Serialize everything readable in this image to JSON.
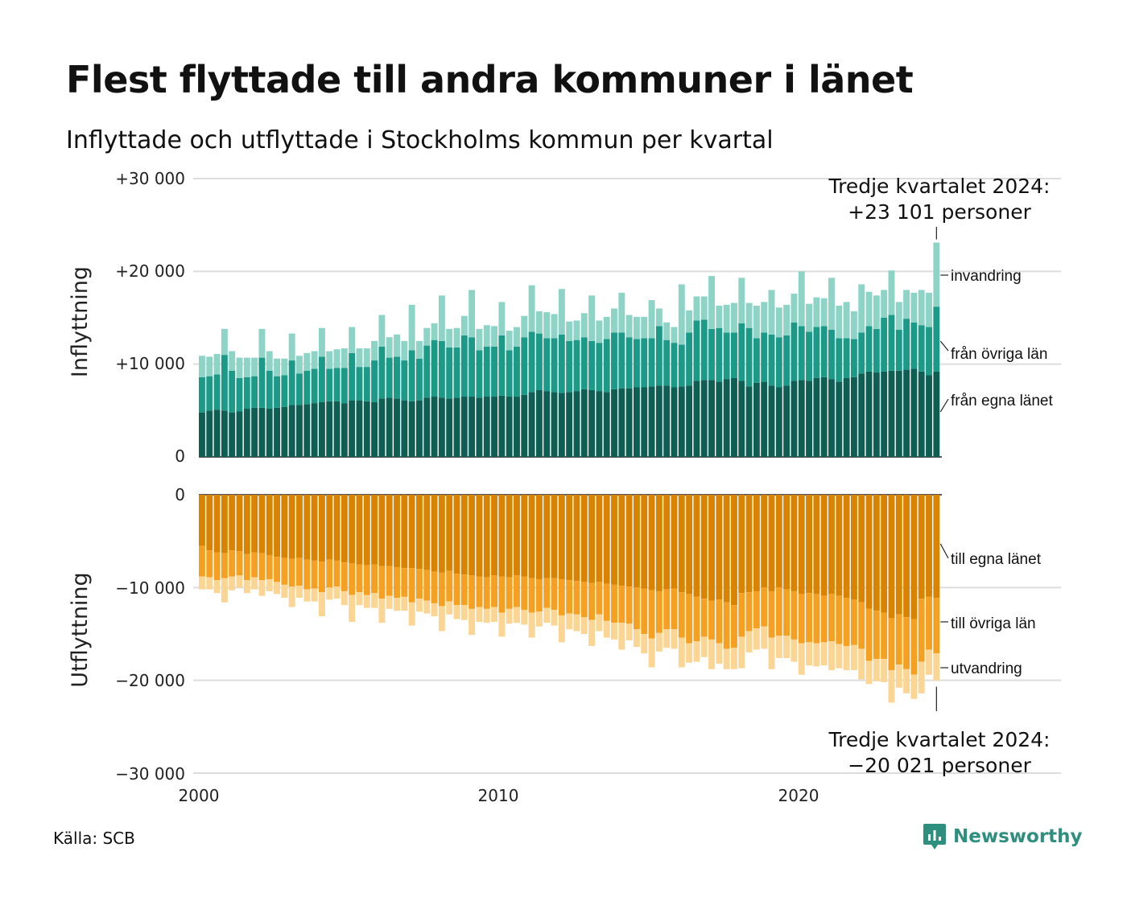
{
  "title": "Flest flyttade till andra kommuner i länet",
  "subtitle": "Inflyttade och utflyttade i Stockholms kommun per kvartal",
  "source": "Källa: SCB",
  "brand": "Newsworthy",
  "colors": {
    "inflow_own": "#0f5e54",
    "inflow_other": "#1b9a88",
    "inflow_immigration": "#8dd4c7",
    "outflow_own": "#d98300",
    "outflow_other": "#f6a021",
    "outflow_emigration": "#fbd593",
    "grid": "#dddddd",
    "brand": "#2f8f7f"
  },
  "chart_data": {
    "type": "bar",
    "stacked": true,
    "layout": "mirrored-panels",
    "x_start": "2000 Q1",
    "x_end": "2024 Q3",
    "x_ticks": [
      "2000",
      "2010",
      "2020"
    ],
    "top_panel": {
      "ylabel": "Inflyttning",
      "ylim": [
        0,
        30000
      ],
      "yticks": [
        "0",
        "+10 000",
        "+20 000",
        "+30 000"
      ],
      "series_labels": [
        "från egna länet",
        "från övriga län",
        "invandring"
      ],
      "annotation": [
        "Tredje kvartalet 2024:",
        "+23 101 personer"
      ]
    },
    "bottom_panel": {
      "ylabel": "Utflyttning",
      "ylim": [
        -30000,
        0
      ],
      "yticks": [
        "0",
        "−10 000",
        "−20 000",
        "−30 000"
      ],
      "series_labels": [
        "till egna länet",
        "till övriga län",
        "utvandring"
      ],
      "annotation": [
        "Tredje kvartalet 2024:",
        "−20 021 personer"
      ]
    },
    "in_own": [
      4800,
      5000,
      5100,
      5000,
      4800,
      4900,
      5200,
      5300,
      5300,
      5200,
      5300,
      5400,
      5600,
      5600,
      5700,
      5800,
      5900,
      6000,
      6000,
      5800,
      6100,
      6100,
      6000,
      5900,
      6300,
      6400,
      6300,
      6100,
      6000,
      6100,
      6400,
      6500,
      6400,
      6300,
      6400,
      6500,
      6500,
      6400,
      6500,
      6500,
      6600,
      6500,
      6500,
      6700,
      7000,
      7200,
      7100,
      7000,
      6900,
      7000,
      7100,
      7300,
      7200,
      7100,
      7000,
      7300,
      7400,
      7400,
      7500,
      7500,
      7600,
      7700,
      7700,
      7500,
      7600,
      7700,
      8200,
      8300,
      8300,
      8100,
      8400,
      8500,
      8200,
      7600,
      8000,
      8100,
      7700,
      7500,
      7700,
      8200,
      8300,
      8200,
      8500,
      8600,
      8400,
      8100,
      8500,
      8600,
      9000,
      9200,
      9100,
      9200,
      9300,
      9300,
      9400,
      9500,
      9200,
      8800,
      9200
    ],
    "in_other": [
      3800,
      3700,
      3800,
      6000,
      4500,
      3600,
      3400,
      3400,
      5400,
      4100,
      3400,
      3400,
      4800,
      3400,
      3600,
      3700,
      4900,
      3500,
      3600,
      3800,
      5100,
      3600,
      3700,
      4500,
      5600,
      4300,
      4500,
      4300,
      5500,
      4500,
      5600,
      6100,
      6100,
      5500,
      5400,
      6600,
      6400,
      5100,
      5400,
      5400,
      6500,
      5000,
      5400,
      6200,
      6500,
      6100,
      5700,
      5800,
      6300,
      5500,
      5500,
      5600,
      5300,
      5200,
      5700,
      6100,
      6000,
      5500,
      5200,
      5300,
      5200,
      6400,
      4900,
      4800,
      4500,
      5700,
      6500,
      6500,
      5500,
      5800,
      5000,
      4900,
      6200,
      6300,
      4800,
      5300,
      5500,
      5400,
      5400,
      6300,
      5800,
      5300,
      5500,
      5500,
      5300,
      4700,
      4300,
      4100,
      4400,
      4900,
      4700,
      5800,
      6000,
      4400,
      5500,
      5000,
      5000,
      5200,
      7000
    ],
    "in_imm": [
      2300,
      2100,
      2200,
      2800,
      2100,
      2200,
      2100,
      2000,
      3100,
      2100,
      1900,
      1800,
      2900,
      1900,
      1900,
      1900,
      3100,
      1900,
      2000,
      2100,
      2800,
      2000,
      2000,
      2100,
      3400,
      2200,
      2400,
      2100,
      4900,
      1900,
      1900,
      1800,
      4900,
      2000,
      2100,
      2100,
      5100,
      2300,
      2300,
      2200,
      3600,
      2100,
      2100,
      2300,
      5000,
      2400,
      2800,
      2600,
      4900,
      2100,
      2100,
      2600,
      4900,
      2400,
      2400,
      2600,
      4300,
      2400,
      2400,
      2300,
      4100,
      1900,
      1900,
      1700,
      6500,
      2400,
      2600,
      2500,
      5700,
      2400,
      3000,
      3200,
      4900,
      2700,
      3500,
      3300,
      4800,
      3200,
      3300,
      3100,
      5900,
      3000,
      3200,
      3000,
      5600,
      3500,
      3900,
      3000,
      5200,
      3700,
      3600,
      3000,
      4800,
      3000,
      3100,
      3200,
      3800,
      3700,
      6900
    ],
    "out_own": [
      5500,
      6000,
      6200,
      6300,
      6000,
      6100,
      6400,
      6200,
      6300,
      6500,
      6700,
      6800,
      6900,
      6800,
      7000,
      7100,
      7200,
      7000,
      7100,
      7300,
      7400,
      7500,
      7600,
      7500,
      7700,
      7700,
      7800,
      7900,
      7900,
      8000,
      8100,
      8300,
      8400,
      8200,
      8500,
      8600,
      8700,
      8800,
      8900,
      8700,
      8800,
      8900,
      8700,
      8800,
      9000,
      9100,
      9000,
      9000,
      9100,
      9200,
      9300,
      9400,
      9500,
      9400,
      9600,
      9700,
      9800,
      9900,
      10000,
      10100,
      10300,
      10400,
      10200,
      10100,
      10500,
      10700,
      11000,
      11200,
      11400,
      11300,
      11600,
      11900,
      10600,
      10500,
      10400,
      10000,
      10400,
      10000,
      10200,
      10400,
      10700,
      10600,
      10700,
      10900,
      10700,
      10900,
      11100,
      11300,
      11600,
      12300,
      12500,
      12700,
      13300,
      12900,
      13200,
      13400,
      11200,
      11000,
      11100
    ],
    "out_other": [
      3300,
      2900,
      3000,
      2700,
      2800,
      2600,
      2800,
      2700,
      2900,
      2600,
      2700,
      2900,
      3000,
      3000,
      3200,
      3000,
      3300,
      3000,
      2800,
      3100,
      3400,
      3000,
      3200,
      3100,
      3500,
      3200,
      3300,
      3100,
      3700,
      3200,
      3300,
      3400,
      3600,
      3300,
      3400,
      3300,
      3600,
      3300,
      3400,
      3400,
      3900,
      3400,
      3400,
      3600,
      3700,
      3500,
      3200,
      3400,
      3900,
      3600,
      3600,
      3800,
      4000,
      3500,
      4000,
      4100,
      4000,
      4000,
      4500,
      4900,
      5200,
      4500,
      4300,
      4400,
      4900,
      5300,
      4800,
      4100,
      4200,
      4700,
      5000,
      4600,
      4700,
      4200,
      4000,
      4200,
      5000,
      5200,
      5000,
      5200,
      5300,
      5300,
      5300,
      5000,
      5100,
      5200,
      5200,
      4900,
      5000,
      5600,
      5200,
      5000,
      5600,
      5400,
      5600,
      6000,
      6800,
      5700,
      6000
    ],
    "out_imm": [
      1400,
      1300,
      1400,
      2600,
      1500,
      1300,
      1400,
      1300,
      1700,
      1300,
      1300,
      1400,
      2200,
      1300,
      1300,
      1400,
      2600,
      1300,
      1300,
      1500,
      2900,
      1400,
      1400,
      1600,
      2600,
      1400,
      1400,
      1500,
      2500,
      1400,
      1400,
      1400,
      2700,
      1400,
      1500,
      1600,
      2800,
      1600,
      1500,
      1600,
      2600,
      1600,
      1700,
      1600,
      2700,
      1600,
      1600,
      1700,
      2900,
      1700,
      1800,
      1800,
      2800,
      1800,
      1800,
      1800,
      2900,
      1800,
      1900,
      2100,
      3100,
      2000,
      2000,
      2100,
      3200,
      2100,
      2200,
      2200,
      3200,
      2200,
      2200,
      2300,
      3400,
      2300,
      2300,
      2400,
      3400,
      2400,
      2400,
      2400,
      3400,
      2500,
      2500,
      2500,
      3100,
      2600,
      2600,
      2700,
      3300,
      2500,
      2400,
      2500,
      3500,
      2500,
      2600,
      2600,
      3400,
      2700,
      2900
    ]
  }
}
